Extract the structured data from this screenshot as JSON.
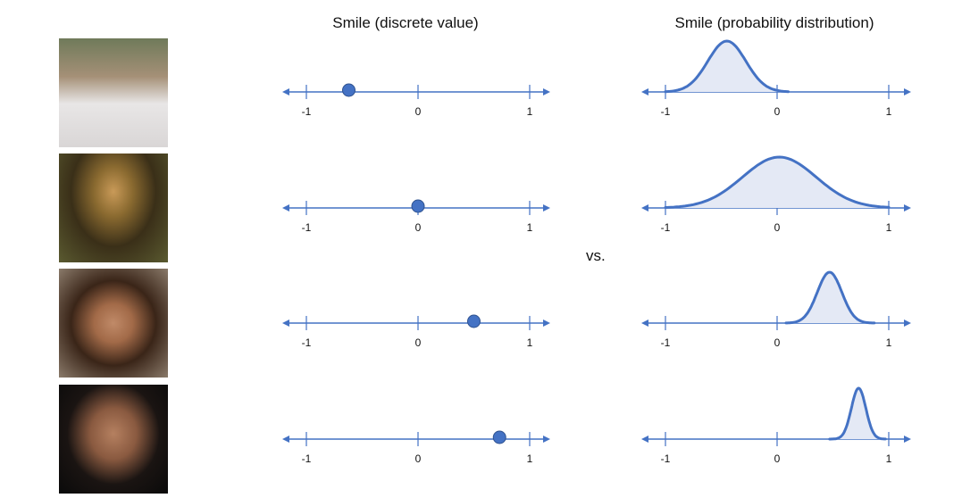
{
  "titles": {
    "discrete": "Smile (discrete value)",
    "distribution": "Smile (probability distribution)"
  },
  "vs_label": "vs.",
  "colors": {
    "line": "#4472C4",
    "dot": "#4472C4",
    "fill": "#E4E9F5",
    "dot_stroke": "#2F528F"
  },
  "chart_data": {
    "type": "diagram",
    "axis": {
      "min": -1,
      "max": 1,
      "tick_labels": [
        "-1",
        "0",
        "1"
      ]
    },
    "rows": [
      {
        "photo": "boy-frowning-photo",
        "discrete_value": -0.62,
        "distribution": {
          "mean": -0.45,
          "sd": 0.17,
          "range": [
            -1,
            0.1
          ]
        }
      },
      {
        "photo": "mona-lisa-photo",
        "discrete_value": 0.0,
        "distribution": {
          "mean": 0.02,
          "sd": 0.33,
          "range": [
            -1,
            1
          ]
        }
      },
      {
        "photo": "smiling-girl-photo",
        "discrete_value": 0.5,
        "distribution": {
          "mean": 0.47,
          "sd": 0.11,
          "range": [
            0.08,
            0.87
          ]
        }
      },
      {
        "photo": "laughing-man-photo",
        "discrete_value": 0.73,
        "distribution": {
          "mean": 0.73,
          "sd": 0.065,
          "range": [
            0.47,
            0.97
          ]
        }
      }
    ]
  }
}
